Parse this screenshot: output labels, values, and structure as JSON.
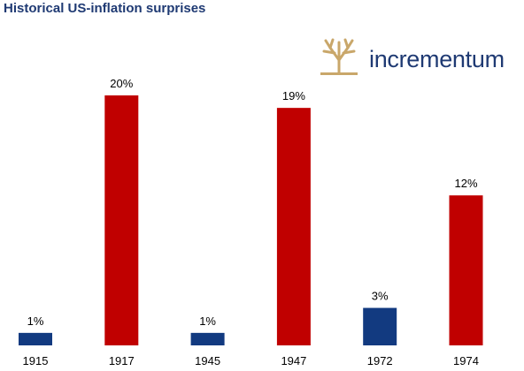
{
  "title": "Historical US-inflation surprises",
  "logo": {
    "text": "incrementum",
    "icon": "tree-logo-icon"
  },
  "colors": {
    "low": "#123a80",
    "high": "#c00000",
    "title": "#1f3a73",
    "logo_icon": "#c9a76a"
  },
  "chart_data": {
    "type": "bar",
    "title": "Historical US-inflation surprises",
    "categories": [
      "1915",
      "1917",
      "1945",
      "1947",
      "1972",
      "1974"
    ],
    "values": [
      1,
      20,
      1,
      19,
      3,
      12
    ],
    "data_labels": [
      "1%",
      "20%",
      "1%",
      "19%",
      "3%",
      "12%"
    ],
    "bar_colors": [
      "#123a80",
      "#c00000",
      "#123a80",
      "#c00000",
      "#123a80",
      "#c00000"
    ],
    "unit": "%",
    "ylim": [
      0,
      20
    ],
    "grid": false,
    "xlabel": "",
    "ylabel": ""
  }
}
